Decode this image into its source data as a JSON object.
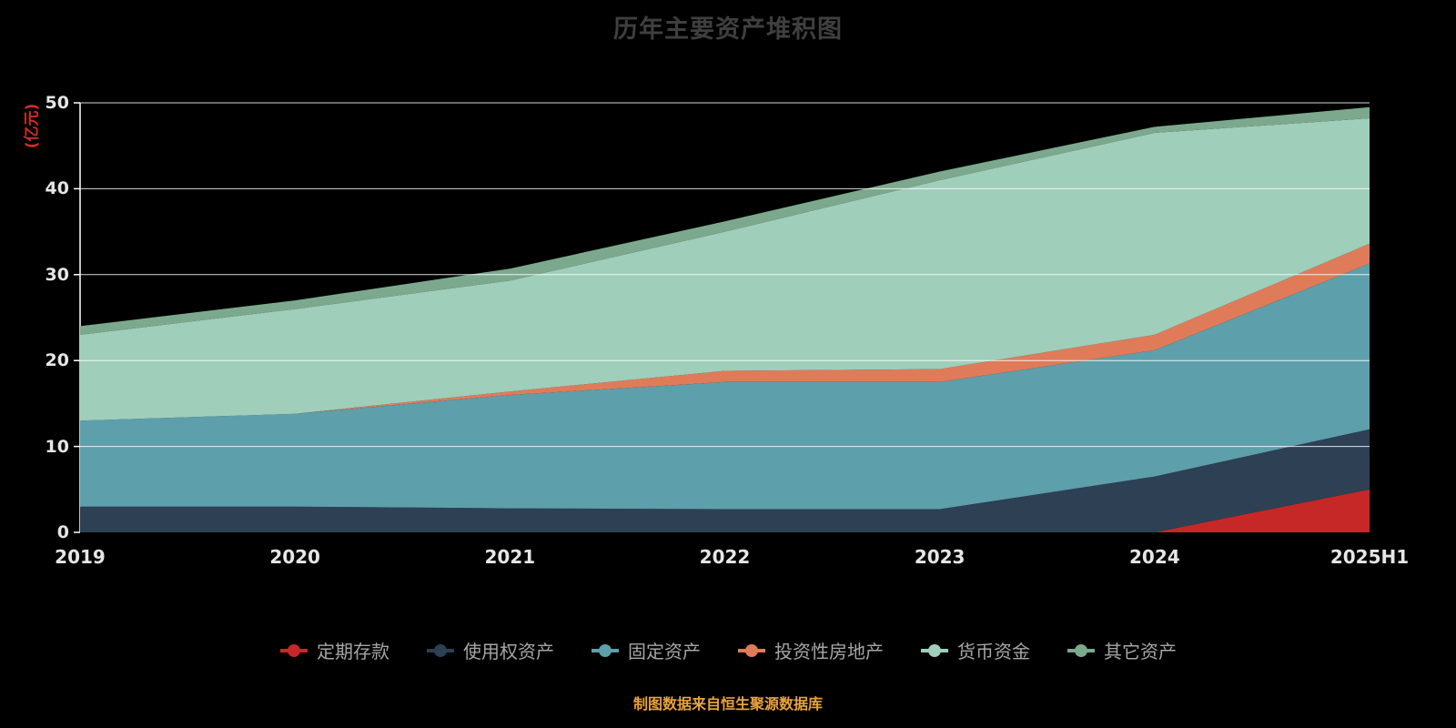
{
  "title": "历年主要资产堆积图",
  "y_axis_unit": "(亿元)",
  "footer": "制图数据来自恒生聚源数据库",
  "colors": {
    "background": "#000000",
    "title": "#3f3f3f",
    "axis_text": "#e6e6e6",
    "grid_line": "#ffffff",
    "unit_label": "#d42a2a",
    "footer": "#e8a33d",
    "legend_text": "#a6a6a6"
  },
  "chart_data": {
    "type": "area",
    "stacked": true,
    "title": "历年主要资产堆积图",
    "ylabel": "(亿元)",
    "ylim": [
      0,
      50
    ],
    "y_ticks": [
      0,
      10,
      20,
      30,
      40,
      50
    ],
    "grid": true,
    "legend_position": "bottom",
    "categories": [
      "2019",
      "2020",
      "2021",
      "2022",
      "2023",
      "2024",
      "2025H1"
    ],
    "series": [
      {
        "name": "定期存款",
        "color": "#c62828",
        "values": [
          0,
          0,
          0,
          0,
          0,
          0,
          5
        ]
      },
      {
        "name": "使用权资产",
        "color": "#2d4054",
        "values": [
          3,
          3,
          2.8,
          2.7,
          2.7,
          6.5,
          7
        ]
      },
      {
        "name": "固定资产",
        "color": "#5d9fab",
        "values": [
          10,
          10.8,
          13.2,
          14.8,
          14.8,
          14.7,
          19.3
        ]
      },
      {
        "name": "投资性房地产",
        "color": "#e07b5a",
        "values": [
          0,
          0,
          0.4,
          1.3,
          1.5,
          1.8,
          2.3
        ]
      },
      {
        "name": "货币资金",
        "color": "#9fceba",
        "values": [
          10,
          12.2,
          12.9,
          16.2,
          22,
          23.5,
          14.6
        ]
      },
      {
        "name": "其它资产",
        "color": "#7ca98e",
        "values": [
          1,
          1,
          1.4,
          1.2,
          1,
          0.7,
          1.3
        ]
      }
    ]
  }
}
